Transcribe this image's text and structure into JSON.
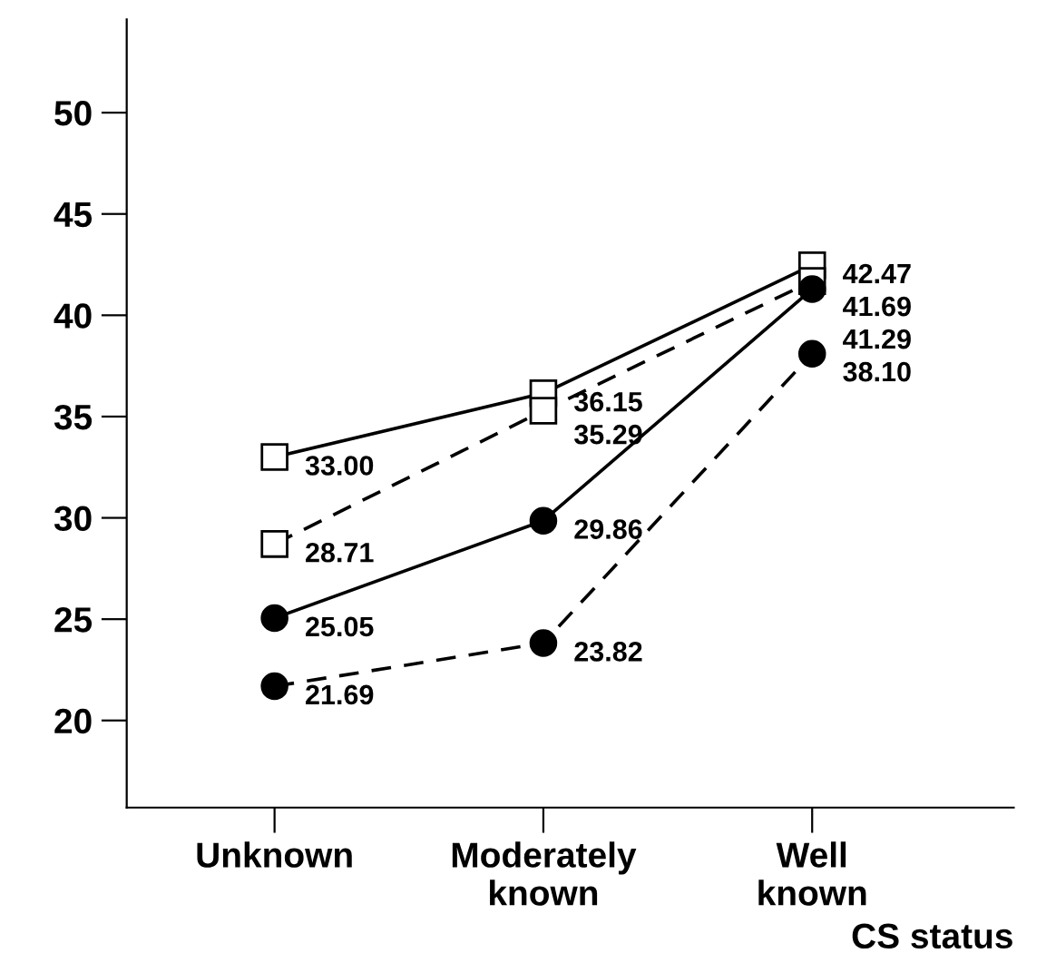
{
  "chart_data": {
    "type": "line",
    "xlabel": "CS status",
    "categories": [
      "Unknown",
      "Moderately\nknown",
      "Well\nknown"
    ],
    "series": [
      {
        "color": "#000000",
        "marker": "square",
        "line_style": "solid",
        "values": [
          33.0,
          36.15,
          42.47
        ],
        "value_labels": [
          "33.00",
          "36.15",
          "42.47"
        ]
      },
      {
        "color": "#000000",
        "marker": "square",
        "line_style": "dashed",
        "values": [
          28.71,
          35.29,
          41.69
        ],
        "value_labels": [
          "28.71",
          "35.29",
          "41.69"
        ]
      },
      {
        "color": "#000000",
        "marker": "circle",
        "line_style": "solid",
        "values": [
          25.05,
          29.86,
          41.29
        ],
        "value_labels": [
          "25.05",
          "29.86",
          "41.29"
        ]
      },
      {
        "color": "#000000",
        "marker": "circle",
        "line_style": "dashed",
        "values": [
          21.69,
          23.82,
          38.1
        ],
        "value_labels": [
          "21.69",
          "23.82",
          "38.10"
        ]
      }
    ],
    "ylim": [
      15.7,
      54.6
    ],
    "yticks": [
      20,
      25,
      30,
      35,
      40,
      45,
      50
    ],
    "grid": false,
    "legend": false
  }
}
